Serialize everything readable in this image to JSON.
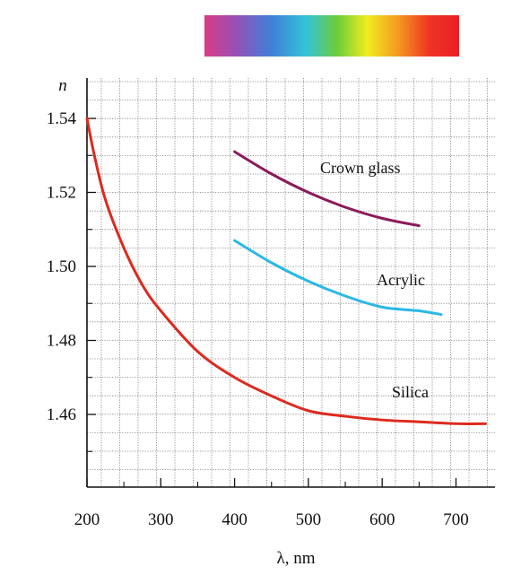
{
  "chart_data": {
    "type": "line",
    "xlabel": "λ, nm",
    "ylabel": "n",
    "xlim": [
      200,
      750
    ],
    "ylim": [
      1.44,
      1.55
    ],
    "x_ticks": [
      200,
      300,
      400,
      500,
      600,
      700
    ],
    "y_ticks": [
      1.46,
      1.48,
      1.5,
      1.52,
      1.54
    ],
    "x_tick_labels": [
      "200",
      "300",
      "400",
      "500",
      "600",
      "700"
    ],
    "y_tick_labels": [
      "1.46",
      "1.48",
      "1.50",
      "1.52",
      "1.54"
    ],
    "grid": true,
    "spectrum_bar": true,
    "series": [
      {
        "name": "Crown glass",
        "color": "#8b1a5a",
        "x": [
          400,
          450,
          500,
          550,
          600,
          650
        ],
        "y": [
          1.531,
          1.525,
          1.52,
          1.516,
          1.513,
          1.511
        ]
      },
      {
        "name": "Acrylic",
        "color": "#2ab8e6",
        "x": [
          400,
          450,
          500,
          550,
          600,
          650,
          680
        ],
        "y": [
          1.507,
          1.501,
          1.496,
          1.492,
          1.489,
          1.488,
          1.487
        ]
      },
      {
        "name": "Silica",
        "color": "#dd2a1e",
        "x": [
          200,
          210,
          225,
          250,
          275,
          300,
          350,
          400,
          450,
          500,
          550,
          600,
          650,
          700,
          740
        ],
        "y": [
          1.54,
          1.53,
          1.518,
          1.505,
          1.495,
          1.488,
          1.477,
          1.47,
          1.465,
          1.461,
          1.4595,
          1.4585,
          1.458,
          1.4575,
          1.4575
        ]
      }
    ]
  }
}
